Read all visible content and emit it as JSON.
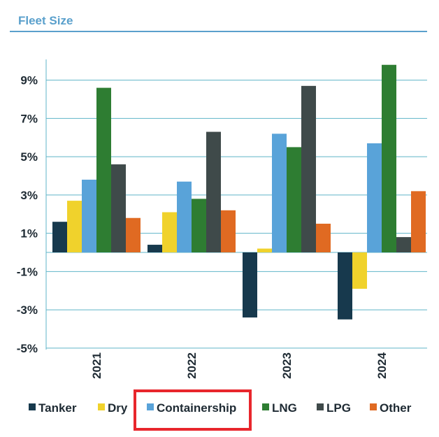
{
  "chart_data": {
    "type": "bar",
    "title": "Fleet Size",
    "categories": [
      "2021",
      "2022",
      "2023",
      "2024"
    ],
    "series": [
      {
        "name": "Tanker",
        "color": "#17394d",
        "values": [
          1.6,
          0.4,
          -3.4,
          -3.5
        ]
      },
      {
        "name": "Dry",
        "color": "#f0d22c",
        "values": [
          2.7,
          2.1,
          0.2,
          -1.9
        ]
      },
      {
        "name": "Containership",
        "color": "#59a3d9",
        "values": [
          3.8,
          3.7,
          6.2,
          5.7
        ]
      },
      {
        "name": "LNG",
        "color": "#2e7d32",
        "values": [
          8.6,
          2.8,
          5.5,
          9.8
        ]
      },
      {
        "name": "LPG",
        "color": "#3f4a4a",
        "values": [
          4.6,
          6.3,
          8.7,
          0.8
        ]
      },
      {
        "name": "Other",
        "color": "#e06a22",
        "values": [
          1.8,
          2.2,
          1.5,
          3.2
        ]
      }
    ],
    "yticks": [
      "9%",
      "7%",
      "5%",
      "3%",
      "1%",
      "-1%",
      "-3%",
      "-5%"
    ],
    "ytick_values": [
      9,
      7,
      5,
      3,
      1,
      -1,
      -3,
      -5
    ],
    "ylim": [
      -5,
      10.5
    ],
    "grid": true,
    "legend_position": "bottom",
    "highlighted_legend_entry": "Containership",
    "highlight_color": "#e8262c",
    "gridline_color": "#5fb4c8"
  }
}
